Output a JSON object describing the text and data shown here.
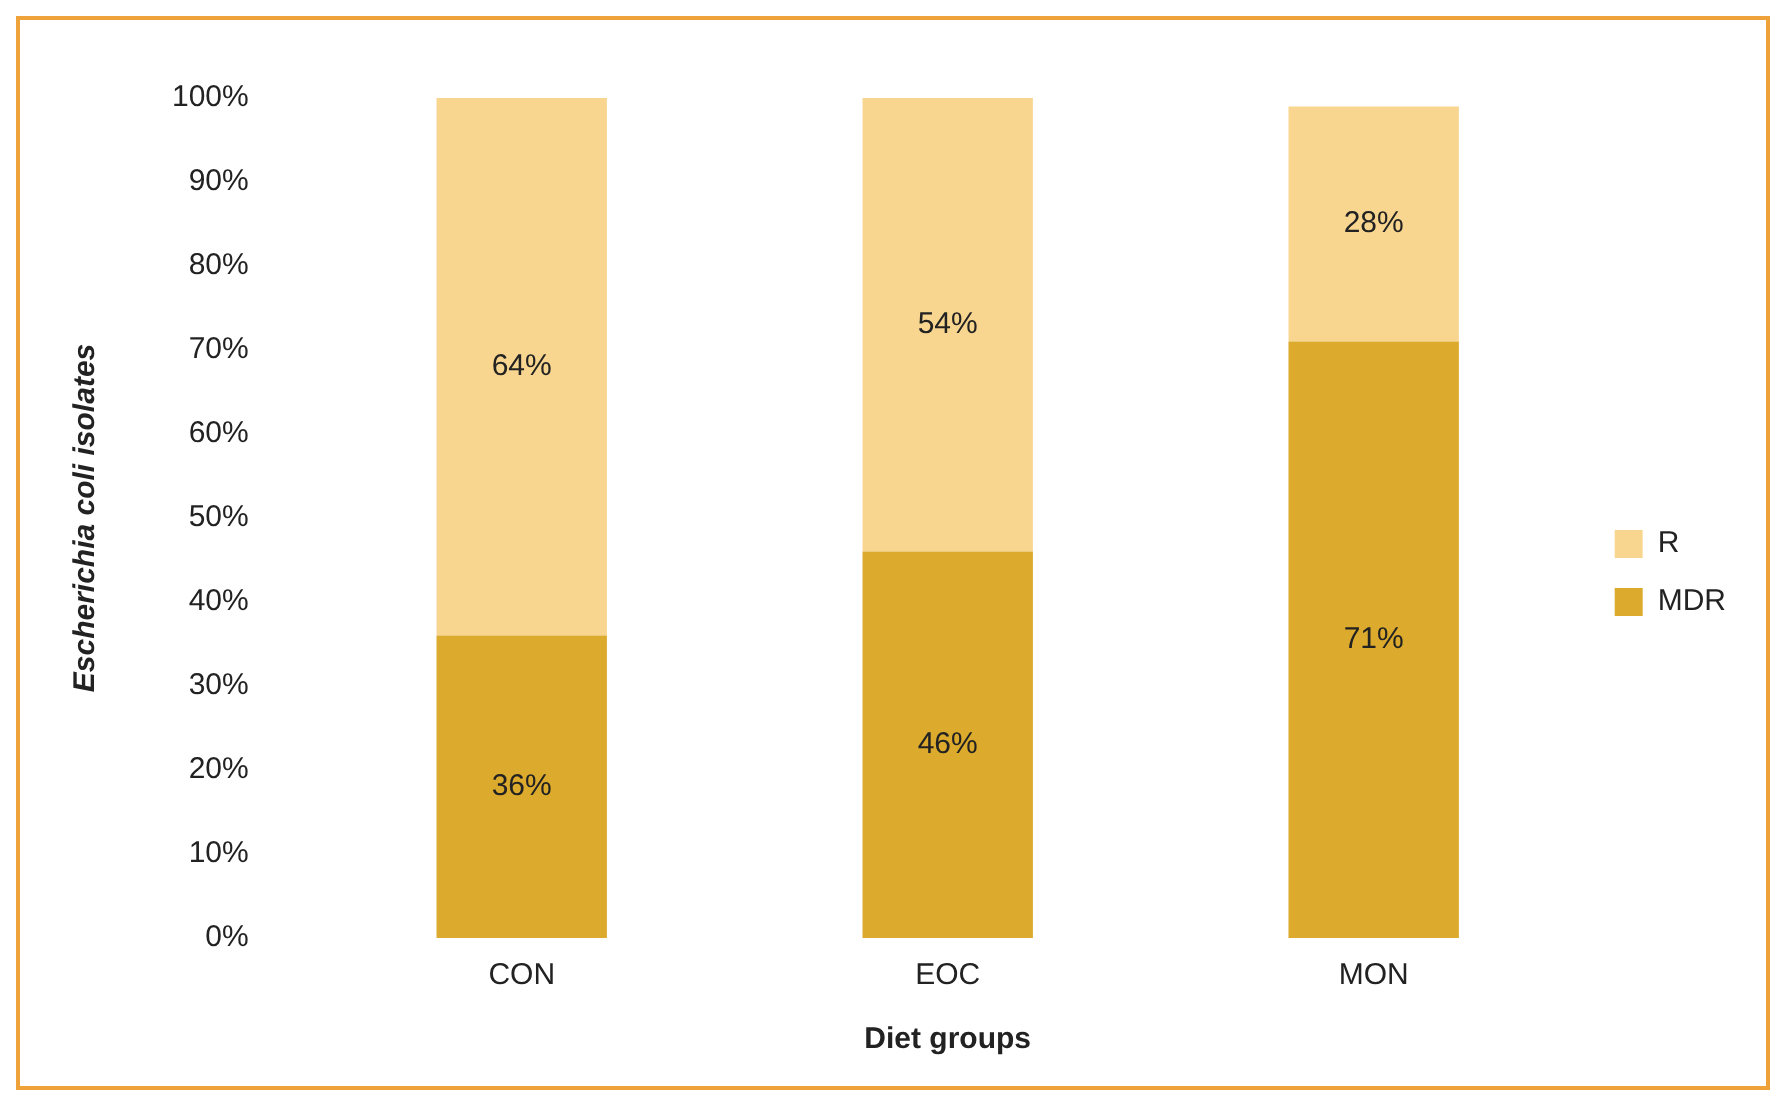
{
  "chart_data": {
    "type": "bar",
    "stacked": true,
    "xlabel": "Diet groups",
    "ylabel": "Escherichia coli isolates",
    "categories": [
      "CON",
      "EOC",
      "MON"
    ],
    "series": [
      {
        "name": "MDR",
        "color": "#dcaa2c",
        "values": [
          36,
          46,
          71
        ],
        "value_labels": [
          "36%",
          "46%",
          "71%"
        ]
      },
      {
        "name": "R",
        "color": "#f9d690",
        "values": [
          64,
          54,
          28
        ],
        "value_labels": [
          "64%",
          "54%",
          "28%"
        ]
      }
    ],
    "ylim": [
      0,
      100
    ],
    "yticks": [
      {
        "value": 0,
        "label": "0%"
      },
      {
        "value": 10,
        "label": "10%"
      },
      {
        "value": 20,
        "label": "20%"
      },
      {
        "value": 30,
        "label": "30%"
      },
      {
        "value": 40,
        "label": "40%"
      },
      {
        "value": 50,
        "label": "50%"
      },
      {
        "value": 60,
        "label": "60%"
      },
      {
        "value": 70,
        "label": "70%"
      },
      {
        "value": 80,
        "label": "80%"
      },
      {
        "value": 90,
        "label": "90%"
      },
      {
        "value": 100,
        "label": "100%"
      }
    ],
    "grid": false,
    "legend": "right"
  }
}
